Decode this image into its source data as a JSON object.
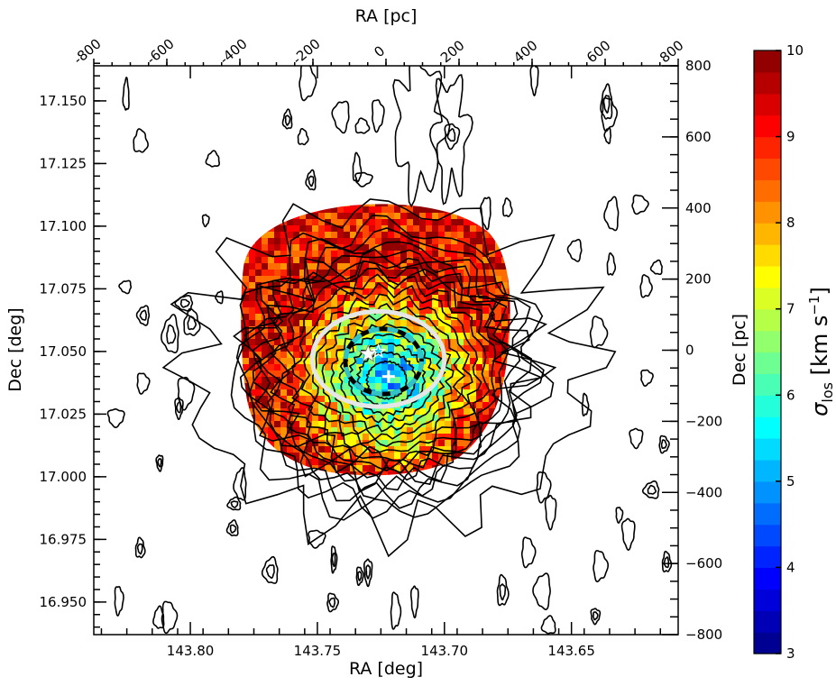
{
  "chart_data": {
    "type": "heatmap",
    "title": "",
    "xlabel": "RA [deg]",
    "ylabel": "Dec [deg]",
    "top_xlabel": "RA [pc]",
    "right_ylabel": "Dec [pc]",
    "colorbar_label": "σ_los [km s⁻¹]",
    "xlim": [
      143.838,
      143.608
    ],
    "ylim": [
      16.937,
      17.164
    ],
    "x_ticks": [
      143.8,
      143.75,
      143.7,
      143.65
    ],
    "x_tick_labels": [
      "143.80",
      "143.75",
      "143.70",
      "143.65"
    ],
    "y_ticks": [
      16.95,
      16.975,
      17.0,
      17.025,
      17.05,
      17.075,
      17.1,
      17.125,
      17.15
    ],
    "y_tick_labels": [
      "16.950",
      "16.975",
      "17.000",
      "17.025",
      "17.050",
      "17.075",
      "17.100",
      "17.125",
      "17.150"
    ],
    "top_ticks_pc": [
      -800,
      -600,
      -400,
      -200,
      0,
      200,
      400,
      600,
      800
    ],
    "top_tick_labels": [
      "-800",
      "-600",
      "-400",
      "-200",
      "0",
      "200",
      "400",
      "600",
      "800"
    ],
    "right_ticks_pc": [
      800,
      600,
      400,
      200,
      0,
      -200,
      -400,
      -600,
      -800
    ],
    "right_tick_labels": [
      "800",
      "600",
      "400",
      "200",
      "0",
      "−200",
      "−400",
      "−600",
      "−800"
    ],
    "pc_range": [
      -800,
      800
    ],
    "colorbar_range": [
      3,
      10
    ],
    "colorbar_ticks": [
      3,
      4,
      5,
      6,
      7,
      8,
      9,
      10
    ],
    "colorbar_tick_labels": [
      "3",
      "4",
      "5",
      "6",
      "7",
      "8",
      "9",
      "10"
    ],
    "colormap": "jet",
    "colormap_levels": 28,
    "dispersion_map": {
      "center_ra": 143.722,
      "center_dec": 17.04,
      "outer_sigma": 9.2,
      "inner_sigma": 5.0,
      "extent_ra": [
        143.778,
        143.675
      ],
      "extent_dec": [
        17.001,
        17.105
      ]
    },
    "markers": [
      {
        "type": "star",
        "ra": 143.73,
        "dec": 17.049,
        "color": "#ffffff"
      },
      {
        "type": "star",
        "ra": 143.726,
        "dec": 17.05,
        "color": "#ffffff"
      },
      {
        "type": "cross",
        "ra": 143.722,
        "dec": 17.04,
        "color": "#ffffff"
      }
    ],
    "annotations": [
      {
        "type": "ellipse",
        "style": "solid",
        "color": "#e6e6e6",
        "ra": 143.726,
        "dec": 17.047,
        "rx_deg": 0.026,
        "ry_deg": 0.019
      },
      {
        "type": "ellipse",
        "style": "dashed",
        "color": "#33c2c9",
        "ra": 143.724,
        "dec": 17.046,
        "rx_deg": 0.015,
        "ry_deg": 0.013
      }
    ],
    "grid": false,
    "legend": "none"
  }
}
